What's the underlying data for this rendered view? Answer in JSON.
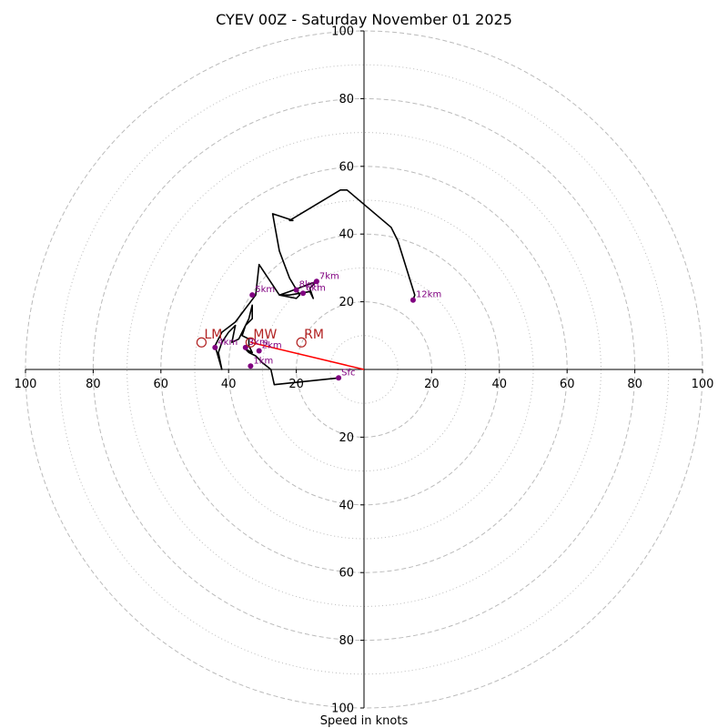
{
  "chart_data": {
    "type": "hodograph",
    "title": "CYEV 00Z - Saturday November 01 2025",
    "xlabel": "Speed in knots",
    "range": [
      -100,
      100
    ],
    "ring_major": [
      20,
      40,
      60,
      80,
      100
    ],
    "ring_minor": [
      10,
      30,
      50,
      70,
      90
    ],
    "x_ticks": [
      {
        "v": -100,
        "label": "100"
      },
      {
        "v": -80,
        "label": "80"
      },
      {
        "v": -60,
        "label": "60"
      },
      {
        "v": -40,
        "label": "40"
      },
      {
        "v": -20,
        "label": "20"
      },
      {
        "v": 20,
        "label": "20"
      },
      {
        "v": 40,
        "label": "40"
      },
      {
        "v": 60,
        "label": "60"
      },
      {
        "v": 80,
        "label": "80"
      },
      {
        "v": 100,
        "label": "100"
      }
    ],
    "y_ticks": [
      {
        "v": 100,
        "label": "100"
      },
      {
        "v": 80,
        "label": "80"
      },
      {
        "v": 60,
        "label": "60"
      },
      {
        "v": 40,
        "label": "40"
      },
      {
        "v": 20,
        "label": "20"
      },
      {
        "v": -20,
        "label": "20"
      },
      {
        "v": -40,
        "label": "40"
      },
      {
        "v": -60,
        "label": "60"
      },
      {
        "v": -80,
        "label": "80"
      },
      {
        "v": -100,
        "label": "100"
      }
    ],
    "trace": [
      [
        -7.5,
        -2.5
      ],
      [
        -26.5,
        -4.5
      ],
      [
        -27.5,
        0
      ],
      [
        -30,
        2
      ],
      [
        -32,
        4
      ],
      [
        -34,
        5
      ],
      [
        -35,
        6
      ],
      [
        -33,
        5
      ],
      [
        -34,
        7
      ],
      [
        -34,
        9
      ],
      [
        -36,
        10
      ],
      [
        -35,
        13
      ],
      [
        -33,
        15
      ],
      [
        -33,
        19
      ],
      [
        -34,
        15
      ],
      [
        -37,
        9
      ],
      [
        -39,
        8
      ],
      [
        -38,
        13
      ],
      [
        -40,
        11
      ],
      [
        -42,
        8
      ],
      [
        -43,
        5
      ],
      [
        -42,
        0
      ],
      [
        -44,
        7
      ],
      [
        -42,
        11
      ],
      [
        -38,
        14
      ],
      [
        -35,
        18
      ],
      [
        -32,
        22
      ],
      [
        -31,
        31
      ],
      [
        -25,
        22
      ],
      [
        -22,
        22
      ],
      [
        -16,
        23
      ],
      [
        -15,
        21
      ],
      [
        -16,
        24
      ],
      [
        -14,
        26
      ],
      [
        -22,
        23
      ],
      [
        -25,
        22
      ],
      [
        -20,
        21
      ],
      [
        -19,
        22
      ],
      [
        -22,
        27
      ],
      [
        -25,
        35
      ],
      [
        -27,
        46
      ],
      [
        -21,
        44
      ],
      [
        -22,
        44
      ],
      [
        -7,
        53
      ],
      [
        -5,
        53
      ],
      [
        8,
        42
      ],
      [
        10,
        38
      ],
      [
        15,
        22
      ],
      [
        14.5,
        20.5
      ]
    ],
    "height_markers": [
      {
        "label": "Sfc",
        "u": -7.5,
        "v": -2.5
      },
      {
        "label": "1km",
        "u": -33.5,
        "v": 1
      },
      {
        "label": "2km",
        "u": -31,
        "v": 5.5
      },
      {
        "label": "3km",
        "u": -35,
        "v": 6.5
      },
      {
        "label": "4km",
        "u": -44,
        "v": 6.5
      },
      {
        "label": "5km",
        "u": -33,
        "v": 22
      },
      {
        "label": "6km",
        "u": -18,
        "v": 22.5
      },
      {
        "label": "7km",
        "u": -14,
        "v": 26
      },
      {
        "label": "8km",
        "u": -20,
        "v": 23.5
      },
      {
        "label": "12km",
        "u": 14.5,
        "v": 20.5
      }
    ],
    "storm_motion": {
      "LM": {
        "label": "LM",
        "u": -48,
        "v": 8
      },
      "MW": {
        "label": "MW",
        "u": -33.5,
        "v": 8
      },
      "RM": {
        "label": "RM",
        "u": -18.5,
        "v": 8
      }
    },
    "colors": {
      "trace": "#000000",
      "marker": "#800080",
      "storm": "#b22222",
      "storm_vector": "#ff0000",
      "grid": "#bbbbbb"
    }
  }
}
